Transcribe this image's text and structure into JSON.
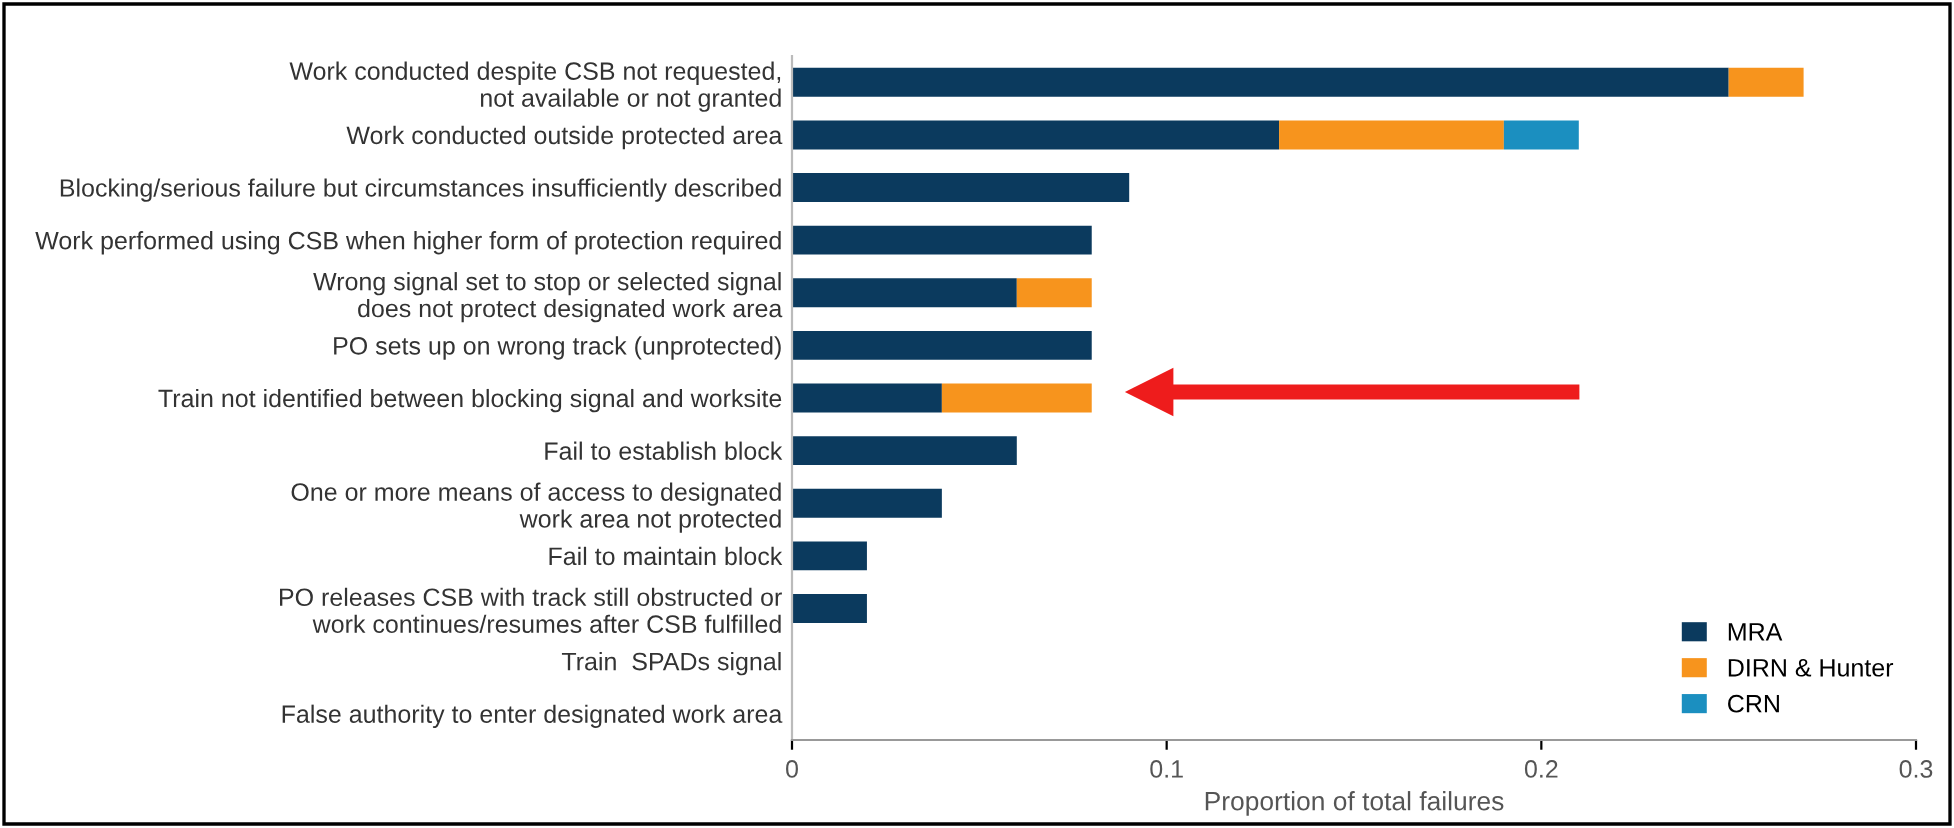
{
  "chart_data": {
    "type": "bar",
    "orientation": "horizontal",
    "stacked": true,
    "categories": [
      "Work conducted despite CSB not requested,\nnot available or not granted",
      "Work conducted outside protected area",
      "Blocking/serious failure but circumstances insufficiently described",
      "Work performed using CSB when higher form of protection required",
      "Wrong signal set to stop or selected signal\ndoes not protect designated work area",
      "PO sets up on wrong track (unprotected)",
      "Train not identified between blocking signal and worksite",
      "Fail to establish block",
      "One or more means of access to designated\nwork area not protected",
      "Fail to maintain block",
      "PO releases CSB with track still obstructed or\nwork continues/resumes after CSB fulfilled",
      "Train  SPADs signal",
      "False authority to enter designated work area"
    ],
    "series": [
      {
        "name": "MRA",
        "color": "#0b3a5e",
        "values": [
          0.25,
          0.13,
          0.09,
          0.08,
          0.06,
          0.08,
          0.04,
          0.06,
          0.04,
          0.02,
          0.02,
          0,
          0
        ]
      },
      {
        "name": "DIRN & Hunter",
        "color": "#f7941d",
        "values": [
          0.02,
          0.06,
          0,
          0,
          0.02,
          0,
          0.04,
          0,
          0,
          0,
          0,
          0,
          0
        ]
      },
      {
        "name": "CRN",
        "color": "#1b8fc0",
        "values": [
          0,
          0.02,
          0,
          0,
          0,
          0,
          0,
          0,
          0,
          0,
          0,
          0,
          0
        ]
      }
    ],
    "xlabel": "Proportion of total failures",
    "xlim": [
      0,
      0.3
    ],
    "xticks": [
      0,
      0.1,
      0.2,
      0.3
    ],
    "legend": "bottom right",
    "grid": false
  }
}
